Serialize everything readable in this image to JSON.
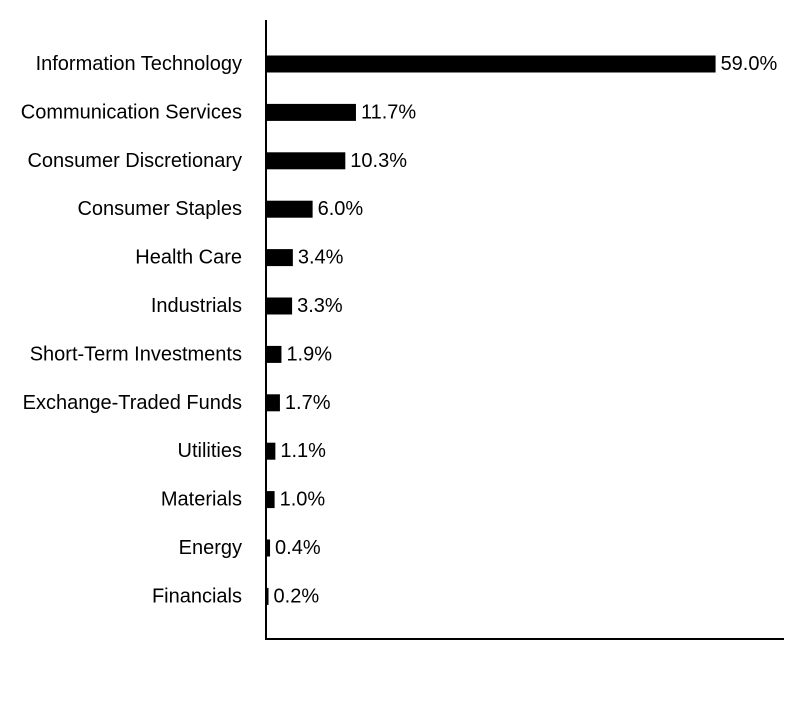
{
  "chart_data": {
    "type": "bar",
    "orientation": "horizontal",
    "categories": [
      "Information Technology",
      "Communication Services",
      "Consumer Discretionary",
      "Consumer Staples",
      "Health Care",
      "Industrials",
      "Short-Term Investments",
      "Exchange-Traded Funds",
      "Utilities",
      "Materials",
      "Energy",
      "Financials"
    ],
    "values": [
      59.0,
      11.7,
      10.3,
      6.0,
      3.4,
      3.3,
      1.9,
      1.7,
      1.1,
      1.0,
      0.4,
      0.2
    ],
    "value_labels": [
      "59.0%",
      "11.7%",
      "10.3%",
      "6.0%",
      "3.4%",
      "3.3%",
      "1.9%",
      "1.7%",
      "1.1%",
      "1.0%",
      "0.4%",
      "0.2%"
    ],
    "title": "",
    "xlabel": "",
    "ylabel": "",
    "xlim": [
      0,
      68
    ],
    "grid": false,
    "legend": "none",
    "bar_color": "#000000"
  }
}
